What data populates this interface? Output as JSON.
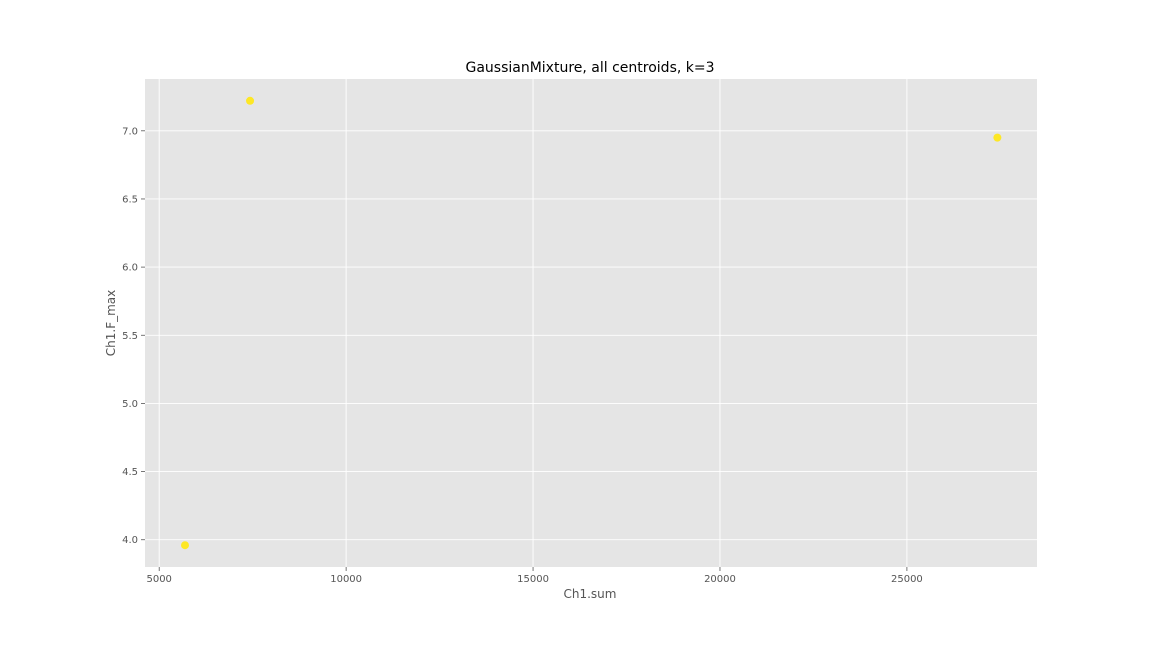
{
  "chart_data": {
    "type": "scatter",
    "title": "GaussianMixture, all centroids, k=3",
    "xlabel": "Ch1.sum",
    "ylabel": "Ch1.F_max",
    "xlim": [
      4620,
      28480
    ],
    "ylim": [
      3.8,
      7.38
    ],
    "xticks": [
      5000,
      10000,
      15000,
      20000,
      25000
    ],
    "xtick_labels": [
      "5000",
      "10000",
      "15000",
      "20000",
      "25000"
    ],
    "yticks": [
      4.0,
      4.5,
      5.0,
      5.5,
      6.0,
      6.5,
      7.0
    ],
    "ytick_labels": [
      "4.0",
      "4.5",
      "5.0",
      "5.5",
      "6.0",
      "6.5",
      "7.0"
    ],
    "grid": true,
    "point_color": "#fde725",
    "points": [
      {
        "x": 7430,
        "y": 7.22
      },
      {
        "x": 27420,
        "y": 6.95
      },
      {
        "x": 5690,
        "y": 3.96
      }
    ]
  }
}
